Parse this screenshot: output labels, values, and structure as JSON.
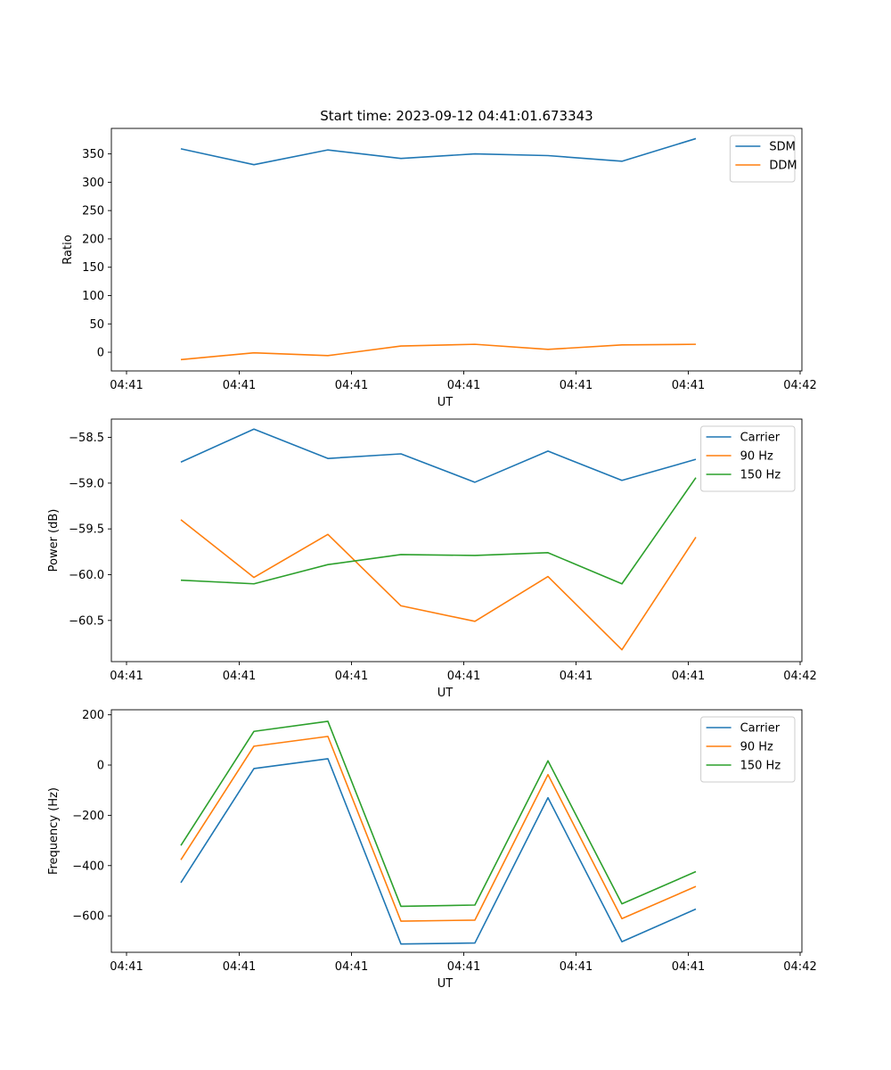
{
  "figure_title": "Start time: 2023-09-12 04:41:01.673343",
  "chart_data": [
    {
      "type": "line",
      "title": "Start time: 2023-09-12 04:41:01.673343",
      "xlabel": "UT",
      "ylabel": "Ratio",
      "x_tick_labels": [
        "04:41",
        "04:41",
        "04:41",
        "04:41",
        "04:41",
        "04:41",
        "04:42"
      ],
      "yticks": [
        0,
        50,
        100,
        150,
        200,
        250,
        300,
        350
      ],
      "ylim": [
        -33,
        395
      ],
      "legend": "top-right",
      "series": [
        {
          "name": "SDM",
          "color": "#1f77b4",
          "values": [
            359,
            331,
            357,
            342,
            350,
            347,
            337,
            377
          ]
        },
        {
          "name": "DDM",
          "color": "#ff7f0e",
          "values": [
            -13,
            -1,
            -6,
            11,
            14,
            5,
            13,
            14
          ]
        }
      ]
    },
    {
      "type": "line",
      "title": "",
      "xlabel": "UT",
      "ylabel": "Power (dB)",
      "x_tick_labels": [
        "04:41",
        "04:41",
        "04:41",
        "04:41",
        "04:41",
        "04:41",
        "04:42"
      ],
      "yticks": [
        -60.5,
        -60.0,
        -59.5,
        -59.0,
        -58.5
      ],
      "ytick_labels": [
        "−60.5",
        "−60.0",
        "−59.5",
        "−59.0",
        "−58.5"
      ],
      "ylim": [
        -60.95,
        -58.3
      ],
      "legend": "top-right",
      "series": [
        {
          "name": "Carrier",
          "color": "#1f77b4",
          "values": [
            -58.77,
            -58.41,
            -58.73,
            -58.68,
            -58.99,
            -58.65,
            -58.97,
            -58.74
          ]
        },
        {
          "name": "90 Hz",
          "color": "#ff7f0e",
          "values": [
            -59.4,
            -60.03,
            -59.56,
            -60.34,
            -60.51,
            -60.02,
            -60.82,
            -59.59
          ]
        },
        {
          "name": "150 Hz",
          "color": "#2ca02c",
          "values": [
            -60.06,
            -60.1,
            -59.89,
            -59.78,
            -59.79,
            -59.76,
            -60.1,
            -58.94
          ]
        }
      ]
    },
    {
      "type": "line",
      "title": "",
      "xlabel": "UT",
      "ylabel": "Frequency (Hz)",
      "x_tick_labels": [
        "04:41",
        "04:41",
        "04:41",
        "04:41",
        "04:41",
        "04:41",
        "04:42"
      ],
      "yticks": [
        -600,
        -400,
        -200,
        0,
        200
      ],
      "ytick_labels": [
        "−600",
        "−400",
        "−200",
        "0",
        "200"
      ],
      "ylim": [
        -745,
        220
      ],
      "legend": "top-right",
      "series": [
        {
          "name": "Carrier",
          "color": "#1f77b4",
          "values": [
            -468,
            -14,
            25,
            -712,
            -708,
            -130,
            -703,
            -573
          ]
        },
        {
          "name": "90 Hz",
          "color": "#ff7f0e",
          "values": [
            -377,
            75,
            114,
            -621,
            -617,
            -38,
            -611,
            -483
          ]
        },
        {
          "name": "150 Hz",
          "color": "#2ca02c",
          "values": [
            -320,
            134,
            174,
            -562,
            -557,
            17,
            -552,
            -424
          ]
        }
      ]
    }
  ]
}
